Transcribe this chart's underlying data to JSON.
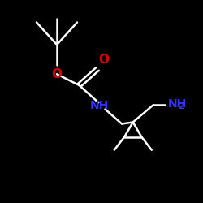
{
  "bg_color": "#000000",
  "bond_color": "#ffffff",
  "blue": "#3333ff",
  "red": "#dd0000",
  "bond_width": 1.8,
  "figsize": [
    2.5,
    2.5
  ],
  "dpi": 100,
  "xlim": [
    0,
    10
  ],
  "ylim": [
    0,
    10
  ]
}
